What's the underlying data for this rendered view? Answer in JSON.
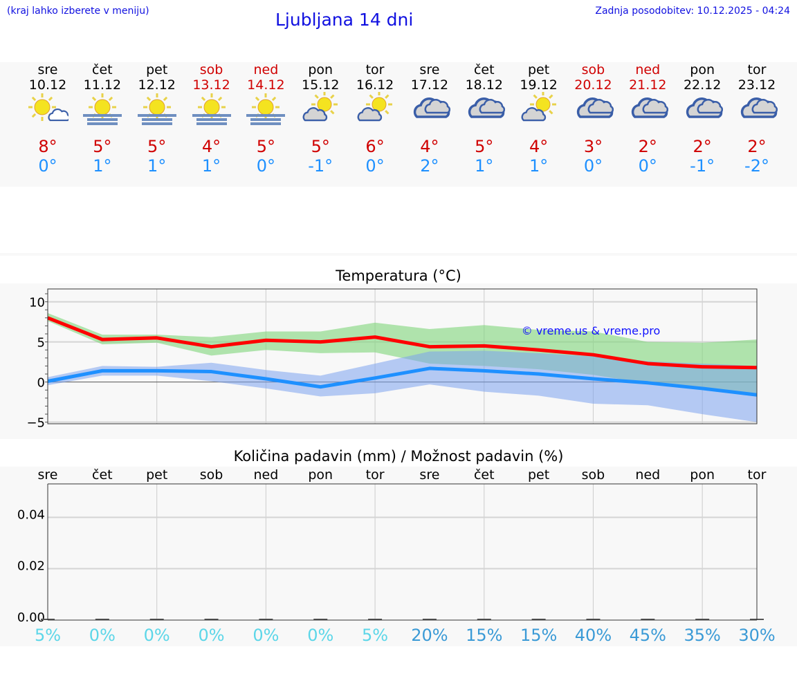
{
  "header": {
    "hint": "(kraj lahko izberete v meniju)",
    "title": "Ljubljana 14 dni",
    "updated": "Zadnja posodobitev: 10.12.2025 - 04:24"
  },
  "colors": {
    "weekday": "#000000",
    "weekend": "#d00000",
    "tmax": "#d00000",
    "tmin": "#1e90ff",
    "prob_low": "#5cd6e8",
    "prob_high": "#3a9ad6",
    "link": "#1010e0"
  },
  "days": [
    {
      "name": "sre",
      "date": "10.12",
      "weekend": false,
      "icon": "sun-small-cloud-icon",
      "tmax": "8°",
      "tmin": "0°",
      "prob": "5%"
    },
    {
      "name": "čet",
      "date": "11.12",
      "weekend": false,
      "icon": "sun-fog-icon",
      "tmax": "5°",
      "tmin": "1°",
      "prob": "0%"
    },
    {
      "name": "pet",
      "date": "12.12",
      "weekend": false,
      "icon": "sun-fog-icon",
      "tmax": "5°",
      "tmin": "1°",
      "prob": "0%"
    },
    {
      "name": "sob",
      "date": "13.12",
      "weekend": true,
      "icon": "sun-fog-icon",
      "tmax": "4°",
      "tmin": "1°",
      "prob": "0%"
    },
    {
      "name": "ned",
      "date": "14.12",
      "weekend": true,
      "icon": "sun-fog-icon",
      "tmax": "5°",
      "tmin": "0°",
      "prob": "0%"
    },
    {
      "name": "pon",
      "date": "15.12",
      "weekend": false,
      "icon": "cloud-sun-icon",
      "tmax": "5°",
      "tmin": "-1°",
      "prob": "0%"
    },
    {
      "name": "tor",
      "date": "16.12",
      "weekend": false,
      "icon": "cloud-sun-icon",
      "tmax": "6°",
      "tmin": "0°",
      "prob": "5%"
    },
    {
      "name": "sre",
      "date": "17.12",
      "weekend": false,
      "icon": "cloud-icon",
      "tmax": "4°",
      "tmin": "2°",
      "prob": "20%"
    },
    {
      "name": "čet",
      "date": "18.12",
      "weekend": false,
      "icon": "cloud-icon",
      "tmax": "5°",
      "tmin": "1°",
      "prob": "15%"
    },
    {
      "name": "pet",
      "date": "19.12",
      "weekend": false,
      "icon": "cloud-sun-icon",
      "tmax": "4°",
      "tmin": "1°",
      "prob": "15%"
    },
    {
      "name": "sob",
      "date": "20.12",
      "weekend": true,
      "icon": "cloud-icon",
      "tmax": "3°",
      "tmin": "0°",
      "prob": "40%"
    },
    {
      "name": "ned",
      "date": "21.12",
      "weekend": true,
      "icon": "cloud-icon",
      "tmax": "2°",
      "tmin": "0°",
      "prob": "45%"
    },
    {
      "name": "pon",
      "date": "22.12",
      "weekend": false,
      "icon": "cloud-icon",
      "tmax": "2°",
      "tmin": "-1°",
      "prob": "35%"
    },
    {
      "name": "tor",
      "date": "23.12",
      "weekend": false,
      "icon": "cloud-icon",
      "tmax": "2°",
      "tmin": "-2°",
      "prob": "30%"
    }
  ],
  "chart_data": [
    {
      "type": "line",
      "title": "Temperatura (°C)",
      "watermark": "© vreme.us & vreme.pro",
      "x": [
        0,
        1,
        2,
        3,
        4,
        5,
        6,
        7,
        8,
        9,
        10,
        11,
        12,
        13
      ],
      "ylim": [
        -5.2,
        11.6
      ],
      "yticks": [
        -5,
        0,
        5,
        10
      ],
      "ytick_labels": [
        "−5",
        "0",
        "5",
        "10"
      ],
      "grid": true,
      "series": [
        {
          "values": [
            8.0,
            5.3,
            5.5,
            4.4,
            5.2,
            5.0,
            5.6,
            4.4,
            4.5,
            4.0,
            3.4,
            2.3,
            1.9,
            1.8
          ],
          "color": "#ff0000",
          "band_upper": [
            8.6,
            5.9,
            5.9,
            5.6,
            6.3,
            6.3,
            7.4,
            6.6,
            7.1,
            6.5,
            6.3,
            5.0,
            4.9,
            5.3
          ],
          "band_lower": [
            7.6,
            4.7,
            4.9,
            3.3,
            4.0,
            3.6,
            3.7,
            2.3,
            2.0,
            1.6,
            0.9,
            -0.2,
            -1.0,
            -1.8
          ],
          "band_color": "#7fd67a"
        },
        {
          "values": [
            0.1,
            1.4,
            1.4,
            1.3,
            0.4,
            -0.6,
            0.5,
            1.7,
            1.4,
            1.0,
            0.4,
            -0.1,
            -0.8,
            -1.6
          ],
          "color": "#1e90ff",
          "band_upper": [
            0.6,
            2.0,
            1.9,
            2.4,
            1.5,
            0.8,
            2.3,
            3.8,
            3.9,
            3.6,
            3.2,
            2.6,
            2.3,
            2.0
          ],
          "band_lower": [
            -0.4,
            0.8,
            0.8,
            0.1,
            -0.8,
            -1.8,
            -1.4,
            -0.3,
            -1.2,
            -1.7,
            -2.7,
            -2.9,
            -4.0,
            -5.0
          ],
          "band_color": "#7ba3ee"
        }
      ]
    },
    {
      "type": "bar",
      "title": "Količina padavin (mm) / Možnost padavin (%)",
      "categories": [
        "sre",
        "čet",
        "pet",
        "sob",
        "ned",
        "pon",
        "tor",
        "sre",
        "čet",
        "pet",
        "sob",
        "ned",
        "pon",
        "tor"
      ],
      "values": [
        0,
        0,
        0,
        0,
        0,
        0,
        0,
        0,
        0,
        0,
        0,
        0,
        0,
        0
      ],
      "ylim": [
        0,
        0.053
      ],
      "yticks": [
        0,
        0.02,
        0.04
      ],
      "ytick_labels": [
        "0.00",
        "0.02",
        "0.04"
      ],
      "grid": true
    }
  ]
}
